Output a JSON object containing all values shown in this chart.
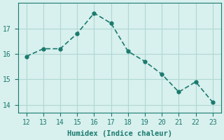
{
  "x": [
    12,
    13,
    14,
    15,
    16,
    17,
    18,
    19,
    20,
    21,
    22,
    23
  ],
  "y": [
    15.9,
    16.2,
    16.2,
    16.8,
    17.6,
    17.2,
    16.1,
    15.7,
    15.2,
    14.5,
    14.9,
    14.1
  ],
  "xlabel": "Humidex (Indice chaleur)",
  "xlim": [
    11.5,
    23.5
  ],
  "ylim": [
    13.7,
    18.0
  ],
  "yticks": [
    14,
    15,
    16,
    17
  ],
  "xticks": [
    12,
    13,
    14,
    15,
    16,
    17,
    18,
    19,
    20,
    21,
    22,
    23
  ],
  "line_color": "#1a7a6e",
  "marker_color": "#1a7a6e",
  "bg_color": "#d8f0ee",
  "grid_color": "#b0d8d4",
  "axis_bg": "#d8f0ee",
  "tick_color": "#1a7a6e",
  "label_color": "#1a7a6e"
}
